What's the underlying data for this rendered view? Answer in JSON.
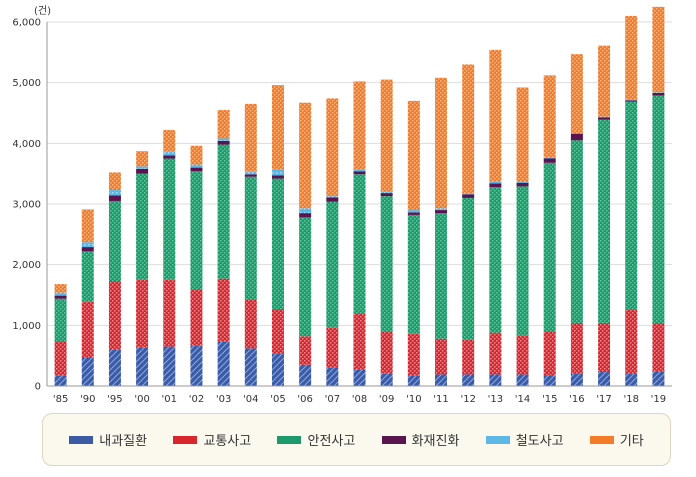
{
  "chart_data": {
    "type": "bar",
    "stacked": true,
    "unit_label": "(건)",
    "title": "",
    "xlabel": "",
    "ylabel": "",
    "ylim": [
      0,
      6000
    ],
    "yticks": [
      0,
      1000,
      2000,
      3000,
      4000,
      5000,
      6000
    ],
    "ytick_labels": [
      "0",
      "1,000",
      "2,000",
      "3,000",
      "4,000",
      "5,000",
      "6,000"
    ],
    "grid": true,
    "legend_position": "bottom",
    "categories": [
      "'85",
      "'90",
      "'95",
      "'00",
      "'01",
      "'02",
      "'03",
      "'04",
      "'05",
      "'06",
      "'07",
      "'08",
      "'09",
      "'10",
      "'11",
      "'12",
      "'13",
      "'14",
      "'15",
      "'16",
      "'17",
      "'18",
      "'19"
    ],
    "series": [
      {
        "name": "내과질환",
        "color": "#3b5ba5",
        "values": [
          170,
          470,
          600,
          640,
          650,
          670,
          730,
          620,
          530,
          350,
          300,
          270,
          210,
          170,
          190,
          190,
          190,
          190,
          180,
          200,
          230,
          200,
          240
        ]
      },
      {
        "name": "교통사고",
        "color": "#d9262e",
        "values": [
          570,
          920,
          1130,
          1110,
          1100,
          920,
          1040,
          810,
          740,
          470,
          660,
          930,
          680,
          690,
          590,
          570,
          690,
          640,
          720,
          840,
          810,
          1060,
          790
        ]
      },
      {
        "name": "안전사고",
        "color": "#1c9a6b",
        "values": [
          700,
          830,
          1320,
          1750,
          2000,
          1950,
          2210,
          2020,
          2150,
          1960,
          2080,
          2290,
          2240,
          1960,
          2070,
          2340,
          2400,
          2460,
          2780,
          3010,
          3350,
          3430,
          3760
        ]
      },
      {
        "name": "화재진화",
        "color": "#5a1450",
        "values": [
          50,
          70,
          90,
          80,
          50,
          60,
          60,
          40,
          50,
          70,
          70,
          50,
          50,
          40,
          50,
          60,
          60,
          60,
          70,
          110,
          40,
          20,
          40
        ]
      },
      {
        "name": "철도사고",
        "color": "#5db8e8",
        "values": [
          50,
          80,
          90,
          40,
          70,
          50,
          40,
          50,
          100,
          80,
          20,
          30,
          20,
          40,
          30,
          20,
          40,
          20,
          20,
          10,
          10,
          10,
          10
        ]
      },
      {
        "name": "기타",
        "color": "#f47c28",
        "values": [
          140,
          540,
          290,
          250,
          350,
          310,
          470,
          1110,
          1390,
          1740,
          1610,
          1450,
          1850,
          1800,
          2150,
          2120,
          2160,
          1550,
          1350,
          1300,
          1170,
          1380,
          1410
        ]
      }
    ]
  }
}
